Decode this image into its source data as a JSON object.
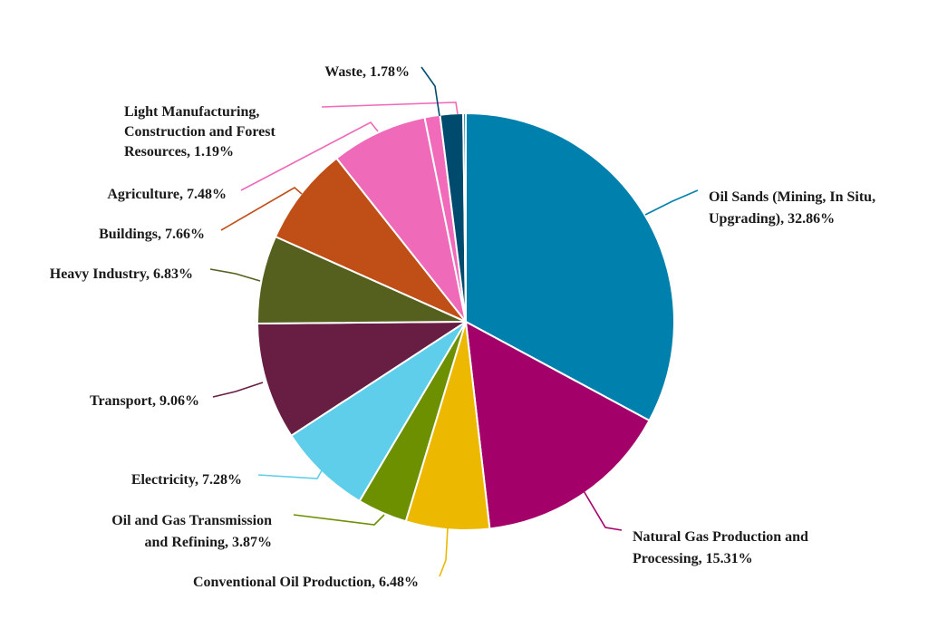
{
  "chart_data": {
    "type": "pie",
    "title": "",
    "start_angle_deg": 0,
    "direction": "clockwise",
    "slices": [
      {
        "lines": [
          "Oil Sands (Mining, In Situ,",
          "Upgrading), 32.86%"
        ],
        "value": 32.86,
        "color": "#0080AC"
      },
      {
        "lines": [
          "Natural Gas Production and",
          "Processing, 15.31%"
        ],
        "value": 15.31,
        "color": "#A4006A"
      },
      {
        "lines": [
          "Conventional Oil Production, 6.48%"
        ],
        "value": 6.48,
        "color": "#EDB800"
      },
      {
        "lines": [
          "Oil and Gas Transmission",
          "and Refining, 3.87%"
        ],
        "value": 3.87,
        "color": "#6C9000"
      },
      {
        "lines": [
          "Electricity, 7.28%"
        ],
        "value": 7.28,
        "color": "#5FCEEB"
      },
      {
        "lines": [
          "Transport, 9.06%"
        ],
        "value": 9.06,
        "color": "#681D43"
      },
      {
        "lines": [
          "Heavy Industry, 6.83%"
        ],
        "value": 6.83,
        "color": "#55601F"
      },
      {
        "lines": [
          "Buildings, 7.66%"
        ],
        "value": 7.66,
        "color": "#C04F17"
      },
      {
        "lines": [
          "Agriculture, 7.48%"
        ],
        "value": 7.48,
        "color": "#EF6AB8"
      },
      {
        "lines": [
          "Light Manufacturing,",
          "Construction and Forest",
          "Resources, 1.19%"
        ],
        "value": 1.19,
        "color": "#F26BBA"
      },
      {
        "lines": [
          "Waste, 1.78%"
        ],
        "value": 1.78,
        "color": "#004A6E"
      },
      {
        "lines": [],
        "value": 0.2,
        "color": "#0080AC"
      }
    ]
  }
}
